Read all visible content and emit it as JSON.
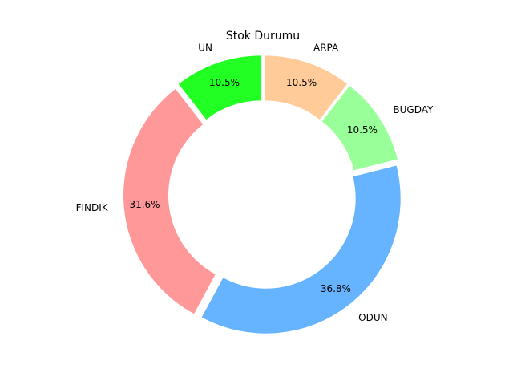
{
  "chart_data": {
    "type": "pie",
    "title": "Stok Durumu",
    "donut": true,
    "start_angle_deg": 90,
    "direction": "counterclockwise",
    "slices": [
      {
        "label": "UN",
        "value": 2,
        "percent_label": "10.5%",
        "color": "#ff9999"
      },
      {
        "label": "FINDIK",
        "value": 6,
        "percent_label": "31.6%",
        "color": "#ff9999"
      },
      {
        "label": "ODUN",
        "value": 7,
        "percent_label": "36.8%",
        "color": "#66b3ff"
      },
      {
        "label": "BUGDAY",
        "value": 2,
        "percent_label": "10.5%",
        "color": "#99ff99"
      },
      {
        "label": "ARPA",
        "value": 2,
        "percent_label": "10.5%",
        "color": "#ffcc99"
      }
    ]
  }
}
